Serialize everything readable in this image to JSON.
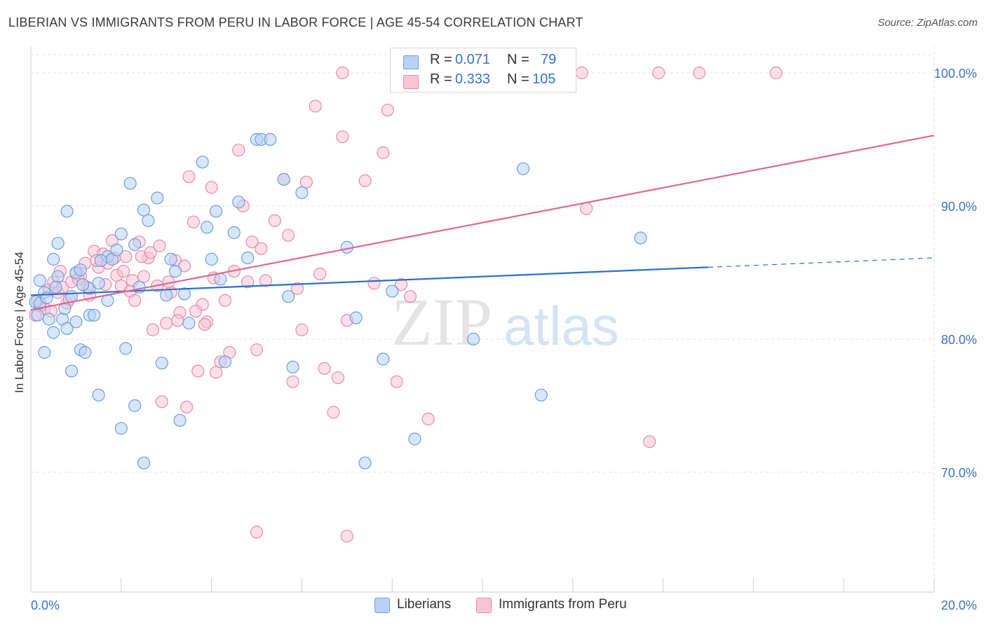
{
  "header": {
    "title": "LIBERIAN VS IMMIGRANTS FROM PERU IN LABOR FORCE | AGE 45-54 CORRELATION CHART",
    "source": "Source: ZipAtlas.com"
  },
  "stats": {
    "liberians": {
      "r_label": "R = ",
      "r_value": "0.071",
      "n_label": "N = ",
      "n_value": "79"
    },
    "peru": {
      "r_label": "R = ",
      "r_value": "0.333",
      "n_label": "N = ",
      "n_value": "105"
    }
  },
  "legend": {
    "series1": "Liberians",
    "series2": "Immigrants from Peru"
  },
  "watermark": {
    "part1": "ZIP",
    "part2": "atlas"
  },
  "chart_data": {
    "type": "scatter",
    "ylabel": "In Labor Force | Age 45-54",
    "xlim": [
      0,
      20
    ],
    "ylim": [
      61,
      102
    ],
    "x_ticks": [
      "0.0%",
      "20.0%"
    ],
    "y_ticks": [
      {
        "value": 70,
        "label": "70.0%"
      },
      {
        "value": 80,
        "label": "80.0%"
      },
      {
        "value": 90,
        "label": "90.0%"
      },
      {
        "value": 100,
        "label": "100.0%"
      }
    ],
    "grid": true,
    "colors": {
      "liberians_fill": "#b8d2f5",
      "liberians_stroke": "#6e9fdb",
      "liberians_line": "#2f6fcc",
      "peru_fill": "#f9c4d4",
      "peru_stroke": "#e98aaa",
      "peru_line": "#e06895",
      "axis_text": "#3a73c4",
      "grid": "#e2e2e2"
    },
    "series": [
      {
        "name": "Liberians",
        "trend": {
          "x0": 0,
          "y0": 83.3,
          "x1": 15,
          "y1": 85.4,
          "dash_to_x": 20,
          "dash_to_y": 86.1
        },
        "points": [
          [
            0.1,
            82.8
          ],
          [
            0.2,
            82.7
          ],
          [
            0.2,
            84.4
          ],
          [
            0.3,
            79.0
          ],
          [
            0.3,
            83.5
          ],
          [
            0.4,
            81.5
          ],
          [
            0.5,
            80.5
          ],
          [
            0.5,
            86.0
          ],
          [
            0.6,
            87.2
          ],
          [
            0.6,
            84.7
          ],
          [
            0.7,
            81.5
          ],
          [
            0.8,
            80.8
          ],
          [
            0.8,
            89.6
          ],
          [
            0.9,
            83.2
          ],
          [
            0.9,
            77.6
          ],
          [
            1.0,
            81.3
          ],
          [
            1.0,
            85.0
          ],
          [
            1.1,
            79.2
          ],
          [
            1.1,
            85.2
          ],
          [
            1.2,
            79.0
          ],
          [
            1.3,
            81.8
          ],
          [
            1.3,
            83.8
          ],
          [
            1.4,
            81.8
          ],
          [
            1.5,
            75.8
          ],
          [
            1.5,
            84.2
          ],
          [
            1.7,
            82.9
          ],
          [
            1.7,
            86.2
          ],
          [
            1.8,
            86.0
          ],
          [
            1.9,
            86.7
          ],
          [
            2.0,
            73.3
          ],
          [
            2.0,
            87.9
          ],
          [
            2.1,
            79.3
          ],
          [
            2.2,
            91.7
          ],
          [
            2.3,
            75.0
          ],
          [
            2.3,
            87.1
          ],
          [
            2.4,
            83.9
          ],
          [
            2.5,
            89.7
          ],
          [
            2.5,
            70.7
          ],
          [
            2.6,
            88.9
          ],
          [
            2.8,
            90.6
          ],
          [
            2.9,
            78.2
          ],
          [
            3.0,
            83.3
          ],
          [
            3.1,
            86.0
          ],
          [
            3.2,
            85.1
          ],
          [
            3.3,
            73.9
          ],
          [
            3.4,
            83.4
          ],
          [
            3.5,
            81.2
          ],
          [
            3.8,
            93.3
          ],
          [
            3.9,
            88.4
          ],
          [
            4.0,
            86.0
          ],
          [
            4.1,
            89.6
          ],
          [
            4.2,
            84.5
          ],
          [
            4.3,
            78.3
          ],
          [
            4.5,
            88.0
          ],
          [
            4.6,
            90.3
          ],
          [
            4.8,
            86.1
          ],
          [
            5.0,
            95.0
          ],
          [
            5.1,
            95.0
          ],
          [
            5.3,
            95.0
          ],
          [
            5.6,
            92.0
          ],
          [
            5.7,
            83.2
          ],
          [
            5.8,
            77.9
          ],
          [
            6.0,
            91.0
          ],
          [
            7.0,
            86.9
          ],
          [
            7.2,
            81.6
          ],
          [
            7.4,
            70.7
          ],
          [
            7.8,
            78.5
          ],
          [
            8.0,
            83.6
          ],
          [
            8.5,
            72.5
          ],
          [
            9.8,
            80.0
          ],
          [
            10.9,
            92.8
          ],
          [
            11.3,
            75.8
          ],
          [
            13.5,
            87.6
          ],
          [
            0.15,
            81.8
          ],
          [
            0.35,
            83.1
          ],
          [
            0.55,
            83.9
          ],
          [
            0.75,
            82.3
          ],
          [
            1.15,
            84.1
          ],
          [
            1.55,
            85.9
          ]
        ]
      },
      {
        "name": "Immigrants from Peru",
        "trend": {
          "x0": 0,
          "y0": 82.2,
          "x1": 20,
          "y1": 95.3
        },
        "points": [
          [
            0.1,
            81.8
          ],
          [
            0.2,
            82.5
          ],
          [
            0.3,
            82.3
          ],
          [
            0.4,
            83.7
          ],
          [
            0.5,
            84.3
          ],
          [
            0.6,
            83.5
          ],
          [
            0.7,
            83.9
          ],
          [
            0.8,
            82.7
          ],
          [
            0.9,
            84.3
          ],
          [
            1.0,
            84.9
          ],
          [
            1.1,
            84.7
          ],
          [
            1.2,
            85.7
          ],
          [
            1.3,
            83.3
          ],
          [
            1.4,
            86.6
          ],
          [
            1.5,
            85.4
          ],
          [
            1.6,
            86.4
          ],
          [
            1.7,
            85.7
          ],
          [
            1.8,
            87.4
          ],
          [
            1.9,
            84.8
          ],
          [
            2.0,
            84.0
          ],
          [
            2.1,
            86.2
          ],
          [
            2.2,
            83.6
          ],
          [
            2.3,
            82.9
          ],
          [
            2.4,
            87.3
          ],
          [
            2.5,
            84.7
          ],
          [
            2.6,
            86.1
          ],
          [
            2.7,
            80.7
          ],
          [
            2.8,
            84.0
          ],
          [
            2.9,
            75.3
          ],
          [
            3.0,
            81.2
          ],
          [
            3.1,
            83.5
          ],
          [
            3.2,
            85.9
          ],
          [
            3.3,
            82.0
          ],
          [
            3.4,
            85.5
          ],
          [
            3.5,
            92.2
          ],
          [
            3.6,
            88.8
          ],
          [
            3.7,
            77.6
          ],
          [
            3.8,
            82.6
          ],
          [
            3.9,
            81.3
          ],
          [
            4.0,
            91.4
          ],
          [
            4.1,
            77.5
          ],
          [
            4.2,
            78.3
          ],
          [
            4.3,
            82.9
          ],
          [
            4.4,
            79.0
          ],
          [
            4.5,
            85.1
          ],
          [
            4.6,
            94.2
          ],
          [
            4.7,
            90.0
          ],
          [
            4.8,
            84.3
          ],
          [
            4.9,
            87.3
          ],
          [
            5.0,
            79.2
          ],
          [
            5.1,
            86.8
          ],
          [
            5.2,
            84.4
          ],
          [
            5.4,
            88.9
          ],
          [
            5.6,
            92.0
          ],
          [
            5.7,
            87.8
          ],
          [
            5.8,
            76.8
          ],
          [
            5.9,
            83.8
          ],
          [
            6.0,
            80.7
          ],
          [
            6.1,
            91.8
          ],
          [
            6.3,
            97.5
          ],
          [
            6.4,
            84.9
          ],
          [
            6.5,
            77.8
          ],
          [
            6.7,
            74.5
          ],
          [
            6.8,
            77.1
          ],
          [
            6.9,
            95.2
          ],
          [
            7.0,
            81.4
          ],
          [
            7.4,
            91.9
          ],
          [
            7.6,
            84.2
          ],
          [
            7.8,
            94.0
          ],
          [
            7.9,
            97.2
          ],
          [
            8.1,
            76.8
          ],
          [
            8.2,
            84.1
          ],
          [
            8.4,
            83.2
          ],
          [
            8.8,
            74.0
          ],
          [
            5.0,
            65.5
          ],
          [
            7.0,
            65.2
          ],
          [
            6.9,
            100.0
          ],
          [
            9.5,
            100.0
          ],
          [
            10.1,
            100.0
          ],
          [
            12.2,
            100.0
          ],
          [
            13.9,
            100.0
          ],
          [
            14.8,
            100.0
          ],
          [
            16.5,
            100.0
          ],
          [
            12.3,
            89.8
          ],
          [
            13.7,
            72.3
          ],
          [
            0.15,
            82.9
          ],
          [
            0.45,
            82.1
          ],
          [
            0.65,
            85.1
          ],
          [
            0.85,
            83.0
          ],
          [
            1.05,
            84.5
          ],
          [
            1.25,
            83.9
          ],
          [
            1.45,
            85.9
          ],
          [
            1.65,
            84.1
          ],
          [
            1.85,
            86.1
          ],
          [
            2.05,
            85.1
          ],
          [
            2.25,
            84.4
          ],
          [
            2.45,
            86.2
          ],
          [
            2.65,
            86.5
          ],
          [
            2.85,
            87.0
          ],
          [
            3.05,
            84.3
          ],
          [
            3.25,
            81.4
          ],
          [
            3.45,
            74.9
          ],
          [
            3.65,
            82.1
          ],
          [
            3.85,
            81.1
          ],
          [
            4.05,
            84.6
          ]
        ]
      }
    ]
  }
}
